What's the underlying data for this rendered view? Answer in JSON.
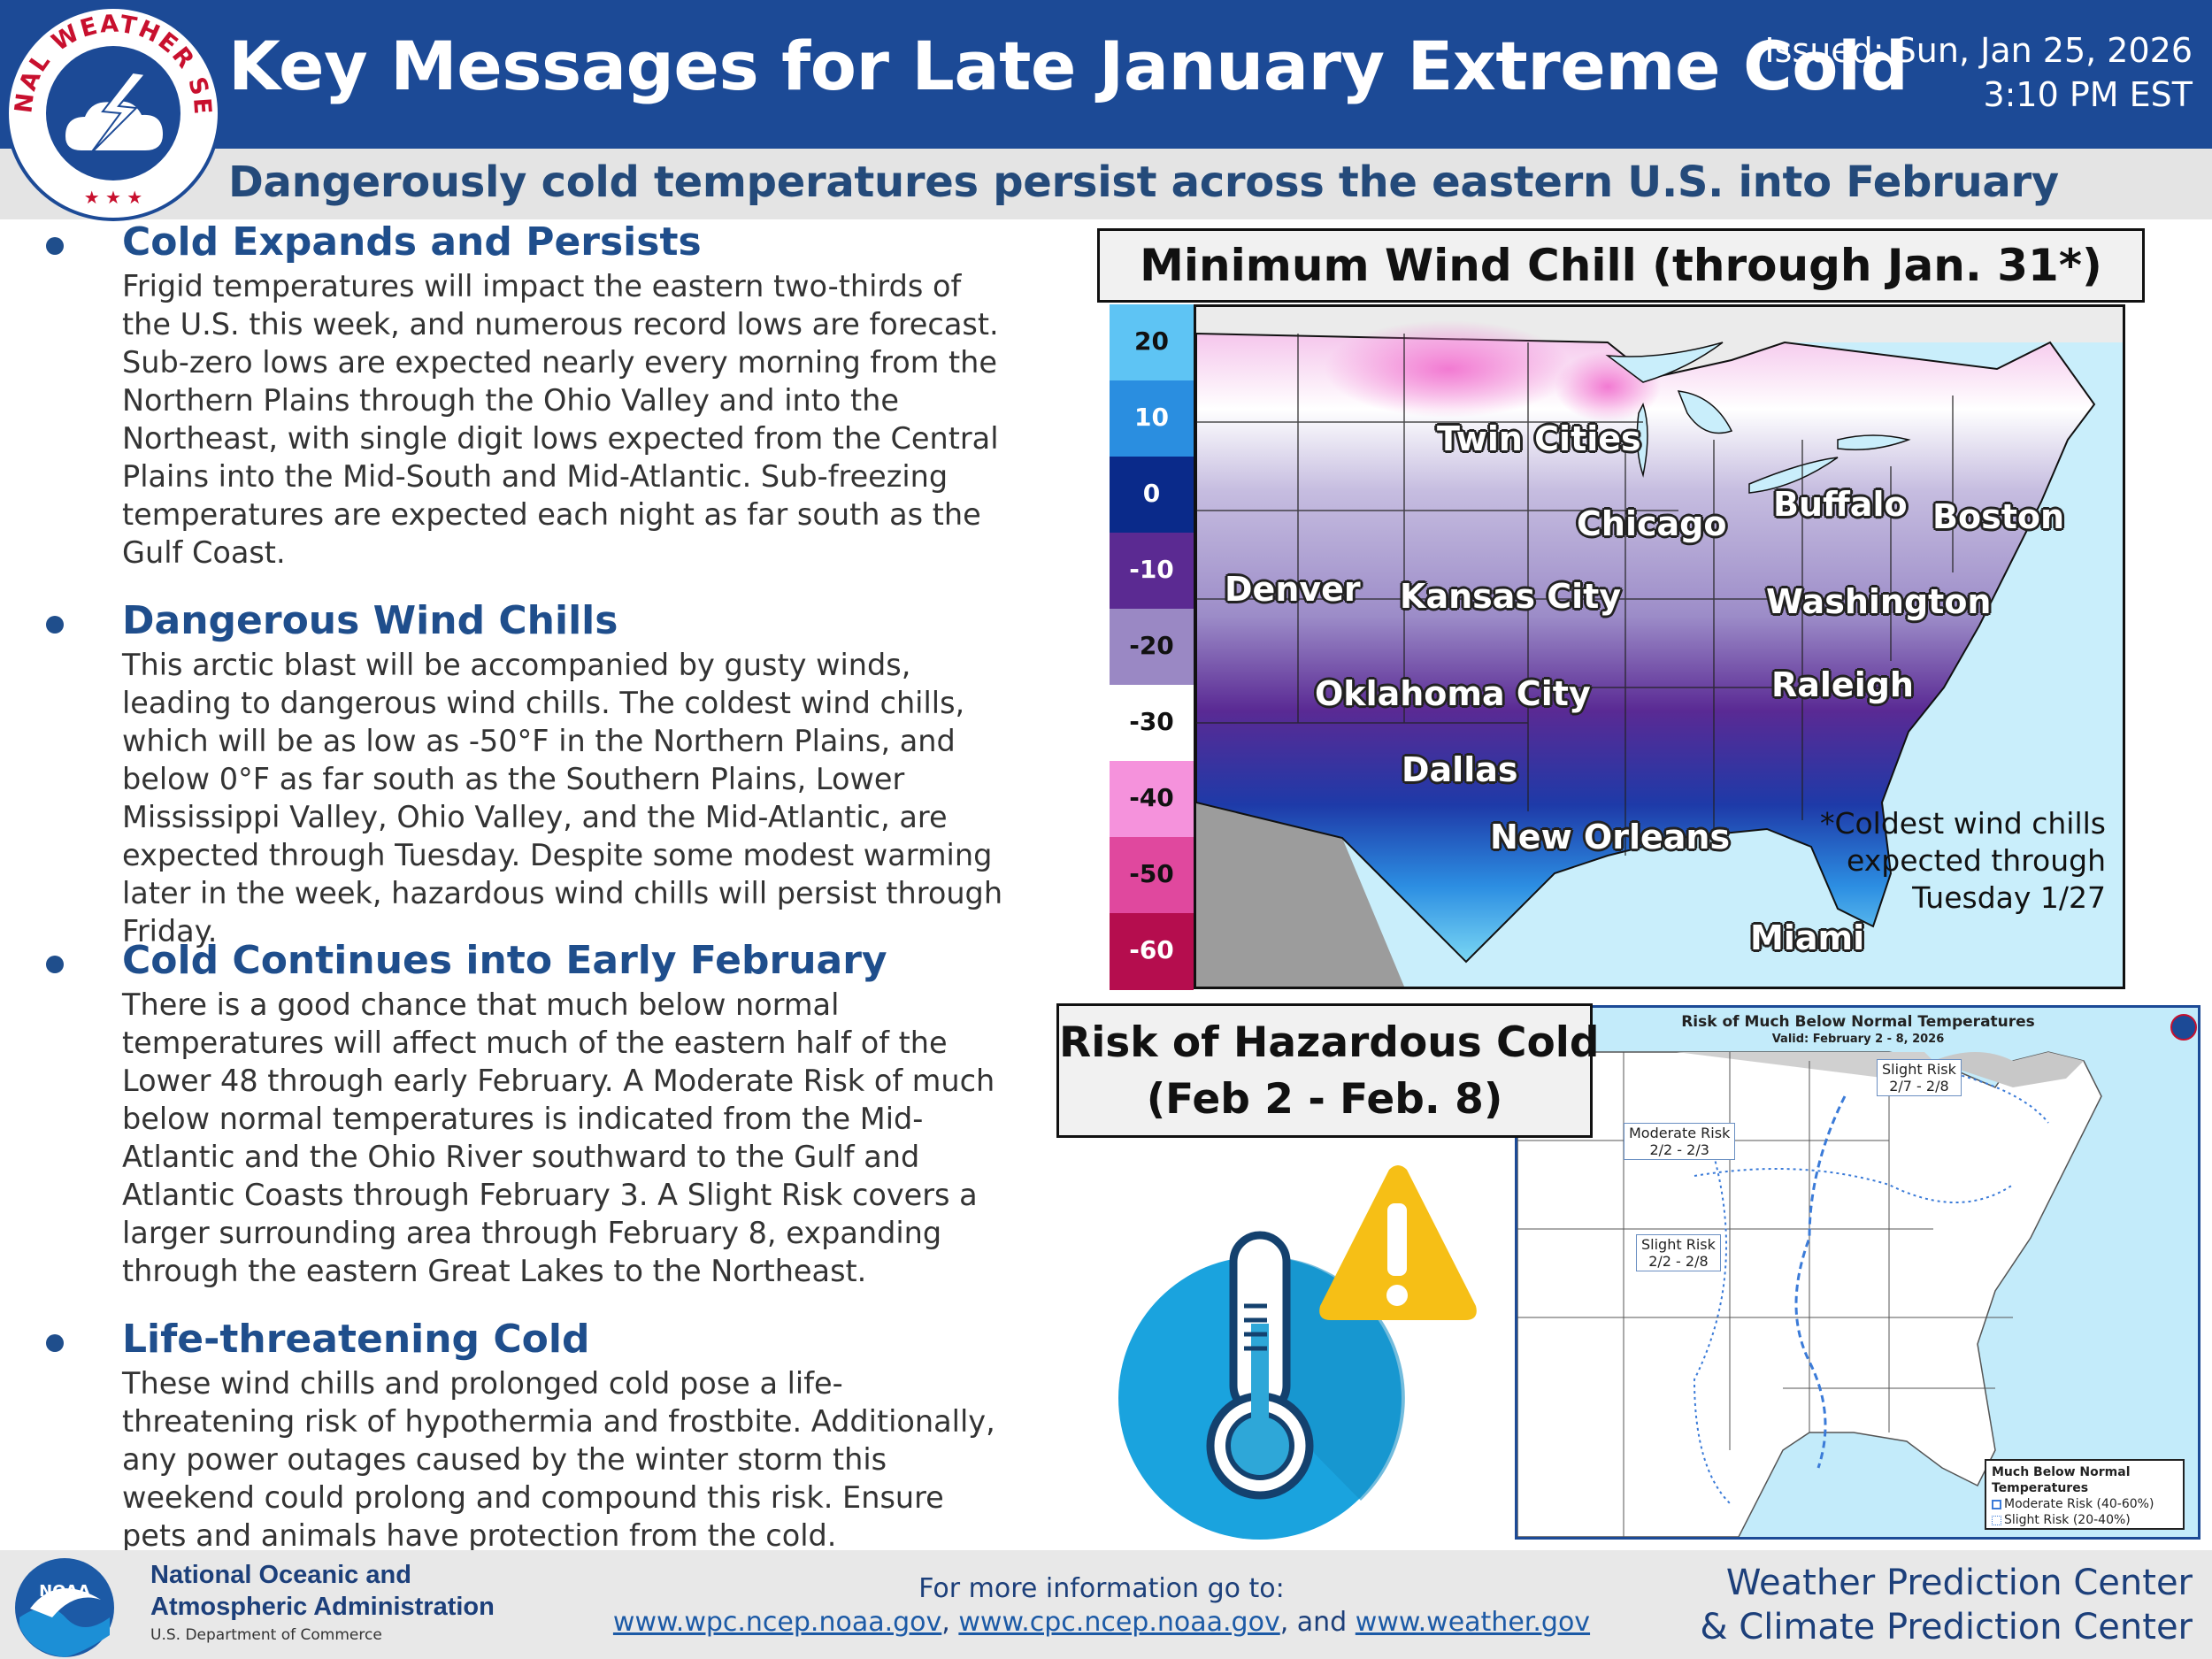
{
  "header": {
    "title": "Key Messages for Late January Extreme Cold",
    "issued_line1": "Issued: Sun, Jan 25, 2026",
    "issued_line2": "3:10 PM EST",
    "subtitle": "Dangerously cold temperatures persist across the eastern U.S. into February",
    "logo_text_top": "NATIONAL WEATHER SERVICE",
    "accent_color": "#1c4a96"
  },
  "sections": [
    {
      "heading": "Cold Expands and Persists",
      "body": "Frigid temperatures will impact the eastern two-thirds of the U.S. this week, and numerous record lows are forecast. Sub-zero lows are expected nearly every morning from the Northern Plains through the Ohio Valley and into the Northeast, with single digit lows expected from the Central Plains into the Mid-South and Mid-Atlantic. Sub-freezing temperatures are expected each night as far south as the Gulf Coast."
    },
    {
      "heading": "Dangerous Wind Chills",
      "body": "This arctic blast will be accompanied by gusty winds, leading to dangerous wind chills. The coldest wind chills, which will be as low as -50°F in the Northern Plains, and below 0°F as far south as the Southern Plains, Lower Mississippi Valley, Ohio Valley, and the Mid-Atlantic, are expected through Tuesday. Despite some modest warming later in the week, hazardous wind chills will persist through Friday."
    },
    {
      "heading": "Cold Continues into Early February",
      "body": "There is a good chance that much below normal temperatures will affect much of the eastern half of the Lower 48 through early February. A Moderate Risk of much below normal temperatures is indicated from the Mid-Atlantic and the Ohio River southward to the Gulf and Atlantic Coasts through February 3. A Slight Risk covers a larger surrounding area through February 8, expanding through the eastern Great Lakes to the Northeast."
    },
    {
      "heading": "Life-threatening Cold",
      "body": "These wind chills and prolonged cold pose a life-threatening risk of hypothermia and frostbite. Additionally, any power outages caused by the winter storm this weekend could prolong and compound this risk. Ensure pets and animals have protection from the cold."
    }
  ],
  "wind_chill_map": {
    "title": "Minimum Wind Chill (through Jan. 31*)",
    "legend": [
      {
        "label": "20",
        "color": "#5ec4f4"
      },
      {
        "label": "10",
        "color": "#2a8ee0"
      },
      {
        "label": "0",
        "color": "#0a2a8a"
      },
      {
        "label": "-10",
        "color": "#5b2a92"
      },
      {
        "label": "-20",
        "color": "#9a88c4"
      },
      {
        "label": "-30",
        "color": "#ffffff"
      },
      {
        "label": "-40",
        "color": "#f592dc"
      },
      {
        "label": "-50",
        "color": "#e0489e"
      },
      {
        "label": "-60",
        "color": "#b50d4e"
      }
    ],
    "cities": [
      "Twin Cities",
      "Chicago",
      "Buffalo",
      "Boston",
      "Denver",
      "Kansas City",
      "Washington",
      "Oklahoma City",
      "Raleigh",
      "Dallas",
      "New Orleans",
      "Miami"
    ],
    "note_line1": "*Coldest wind chills",
    "note_line2": "expected through",
    "note_line3": "Tuesday 1/27"
  },
  "risk_map": {
    "box_line1": "Risk of Hazardous Cold",
    "box_line2": "(Feb 2 - Feb. 8)",
    "title": "Risk of Much Below Normal Temperatures",
    "valid": "Valid: February 2 - 8, 2026",
    "labels": [
      {
        "line1": "Slight Risk",
        "line2": "2/7 - 2/8"
      },
      {
        "line1": "Moderate Risk",
        "line2": "2/2 - 2/3"
      },
      {
        "line1": "Slight Risk",
        "line2": "2/2 - 2/8"
      }
    ],
    "legend_title": "Much Below Normal Temperatures",
    "legend_moderate": "Moderate Risk (40-60%)",
    "legend_slight": "Slight Risk (20-40%)"
  },
  "footer": {
    "noaa_line1": "National Oceanic and",
    "noaa_line2": "Atmospheric Administration",
    "noaa_dept": "U.S. Department of Commerce",
    "noaa_logo_text": "NOAA",
    "more_info": "For more information go to:",
    "link1": "www.wpc.ncep.noaa.gov",
    "link2": "www.cpc.ncep.noaa.gov",
    "link3": "www.weather.gov",
    "and_word": "and",
    "centers_line1": "Weather Prediction Center",
    "centers_line2": "& Climate Prediction Center"
  }
}
